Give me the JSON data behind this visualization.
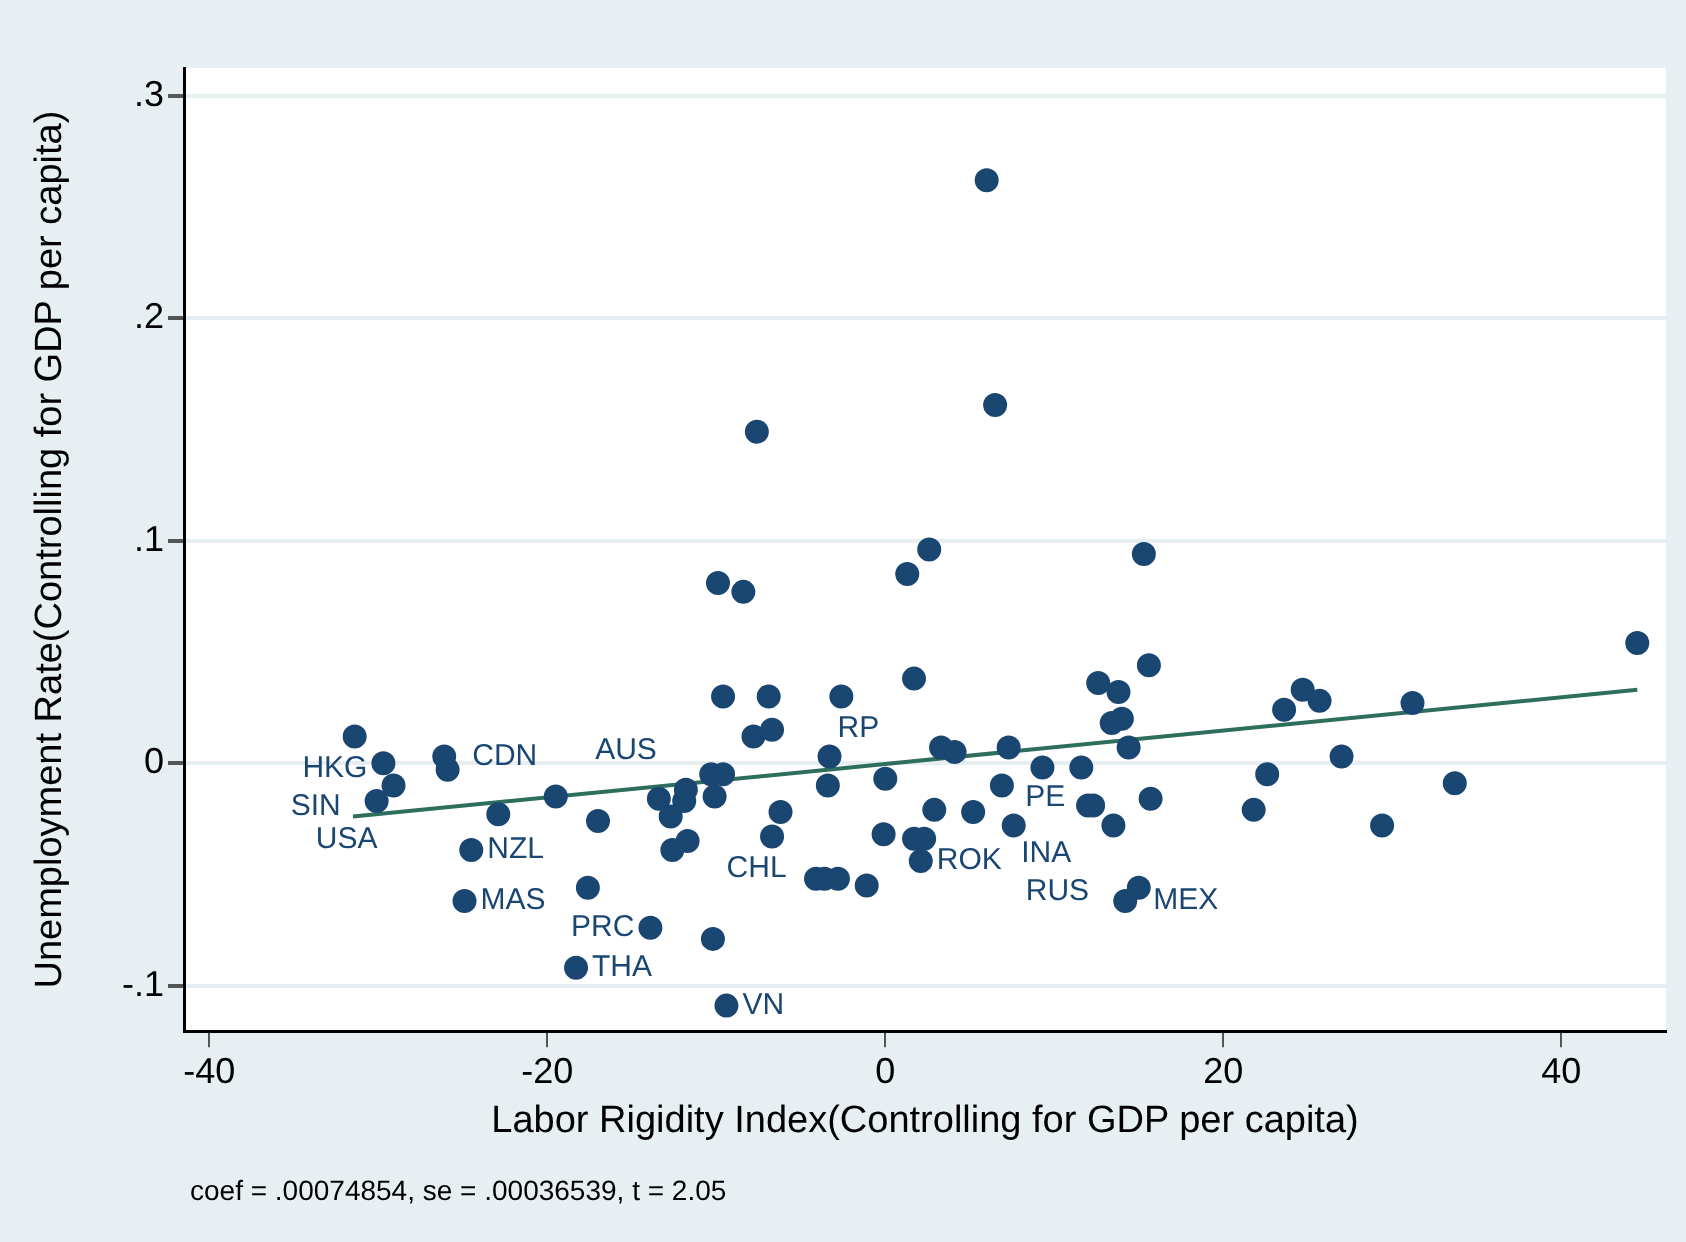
{
  "chart_data": {
    "type": "scatter",
    "xlabel": "Labor Rigidity Index(Controlling for GDP per capita)",
    "ylabel": "Unemployment Rate(Controlling for GDP per capita)",
    "annotations": [
      "coef = .00074854, se = .00036539, t = 2.05"
    ],
    "xlim": [
      -41.5,
      46.2
    ],
    "xticks": [
      -40,
      -20,
      0,
      20,
      40
    ],
    "ylim": [
      -0.1205,
      0.3125
    ],
    "yticks": [
      {
        "value": -0.1,
        "label": "-.1"
      },
      {
        "value": 0,
        "label": "0"
      },
      {
        "value": 0.1,
        "label": ".1"
      },
      {
        "value": 0.2,
        "label": ".2"
      },
      {
        "value": 0.3,
        "label": ".3"
      }
    ],
    "grid": "y",
    "legend": false,
    "marker": "circle",
    "series": [
      {
        "color": "#1a4672",
        "x": [
          -31.4,
          -29.7,
          -29.1,
          -30.1,
          -26.1,
          -25.9,
          -22.9,
          -24.5,
          -24.9,
          -19.5,
          -17.0,
          -17.6,
          -18.3,
          -13.9,
          -10.2,
          -9.4,
          -13.4,
          -12.7,
          -11.9,
          -11.8,
          -12.6,
          -11.7,
          -10.3,
          -9.6,
          -10.1,
          -9.9,
          -8.4,
          -9.6,
          -6.9,
          -7.8,
          -6.7,
          -6.2,
          -6.7,
          -2.6,
          1.7,
          1.3,
          2.6,
          -3.3,
          -3.4,
          0.0,
          -4.1,
          -3.6,
          -2.8,
          -1.1,
          -0.1,
          1.7,
          2.3,
          2.1,
          2.9,
          -7.6,
          6.0,
          6.5,
          15.3,
          15.6,
          12.6,
          13.8,
          13.4,
          14.0,
          14.4,
          11.6,
          3.3,
          4.1,
          7.3,
          9.3,
          5.2,
          12.0,
          12.3,
          7.6,
          13.5,
          15.7,
          15.0,
          14.2,
          22.6,
          21.8,
          23.6,
          24.7,
          25.7,
          27.0,
          29.4,
          31.2,
          33.7,
          44.5,
          6.9
        ],
        "values": [
          0.012,
          0.0,
          -0.01,
          -0.017,
          0.003,
          -0.003,
          -0.023,
          -0.039,
          -0.062,
          -0.015,
          -0.026,
          -0.056,
          -0.092,
          -0.074,
          -0.079,
          -0.109,
          -0.016,
          -0.024,
          -0.017,
          -0.012,
          -0.039,
          -0.035,
          -0.005,
          -0.005,
          -0.015,
          0.081,
          0.077,
          0.03,
          0.03,
          0.012,
          0.015,
          -0.022,
          -0.033,
          0.03,
          0.038,
          0.085,
          0.096,
          0.003,
          -0.01,
          -0.007,
          -0.052,
          -0.052,
          -0.052,
          -0.055,
          -0.032,
          -0.034,
          -0.034,
          -0.044,
          -0.021,
          0.149,
          0.262,
          0.161,
          0.094,
          0.044,
          0.036,
          0.032,
          0.018,
          0.02,
          0.007,
          -0.002,
          0.007,
          0.005,
          0.007,
          -0.002,
          -0.022,
          -0.019,
          -0.019,
          -0.028,
          -0.028,
          -0.016,
          -0.056,
          -0.062,
          -0.005,
          -0.021,
          0.024,
          0.033,
          0.028,
          0.003,
          -0.028,
          0.027,
          -0.009,
          0.054,
          -0.01
        ],
        "value_labels": [
          null,
          "HKG",
          "USA",
          "SIN",
          "CDN",
          null,
          null,
          "NZL",
          "MAS",
          null,
          null,
          null,
          "THA",
          "PRC",
          null,
          "VN",
          "AUS",
          null,
          null,
          null,
          null,
          null,
          null,
          null,
          "CHL",
          null,
          null,
          null,
          null,
          null,
          null,
          null,
          null,
          null,
          null,
          null,
          null,
          "RP",
          null,
          null,
          null,
          null,
          null,
          null,
          null,
          null,
          null,
          "ROK",
          null,
          null,
          null,
          null,
          null,
          null,
          null,
          null,
          null,
          null,
          null,
          "PE",
          null,
          null,
          null,
          null,
          "INA",
          null,
          null,
          "RUS",
          null,
          null,
          null,
          "MEX",
          null,
          null,
          null,
          null,
          null,
          null,
          null,
          null,
          null,
          null,
          null
        ]
      },
      {
        "type": "line",
        "marker": "none",
        "color": "#2d6e5c",
        "x": [
          -31.5,
          44.5
        ],
        "values": [
          -0.024,
          0.033
        ]
      }
    ]
  }
}
